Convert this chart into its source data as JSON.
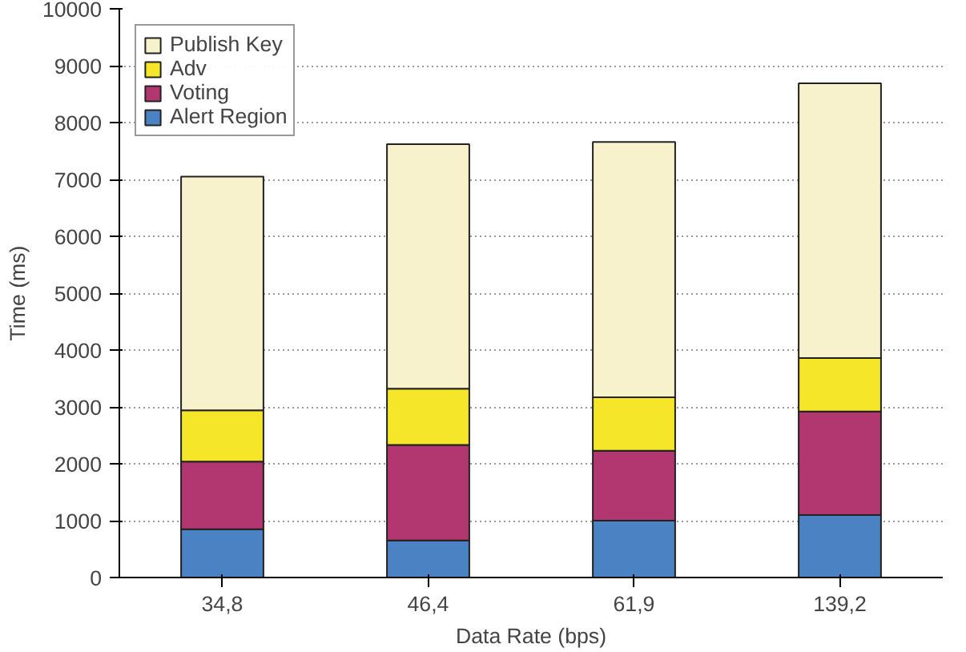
{
  "chart_data": {
    "type": "bar",
    "stacked": true,
    "xlabel": "Data Rate (bps)",
    "ylabel": "Time (ms)",
    "categories": [
      "34,8",
      "46,4",
      "61,9",
      "139,2"
    ],
    "series": [
      {
        "name": "Alert Region",
        "color": "#4a82c4",
        "values": [
          850,
          650,
          1000,
          1100
        ]
      },
      {
        "name": "Voting",
        "color": "#b23670",
        "values": [
          1190,
          1680,
          1230,
          1820
        ]
      },
      {
        "name": "Adv",
        "color": "#f5e62a",
        "values": [
          900,
          990,
          940,
          940
        ]
      },
      {
        "name": "Publish Key",
        "color": "#f8f2cc",
        "values": [
          4110,
          4300,
          4490,
          4830
        ]
      }
    ],
    "ylim": [
      0,
      10000
    ],
    "yticks": [
      0,
      1000,
      2000,
      3000,
      4000,
      5000,
      6000,
      7000,
      8000,
      9000,
      10000
    ],
    "grid": "y",
    "legend": "top left"
  }
}
